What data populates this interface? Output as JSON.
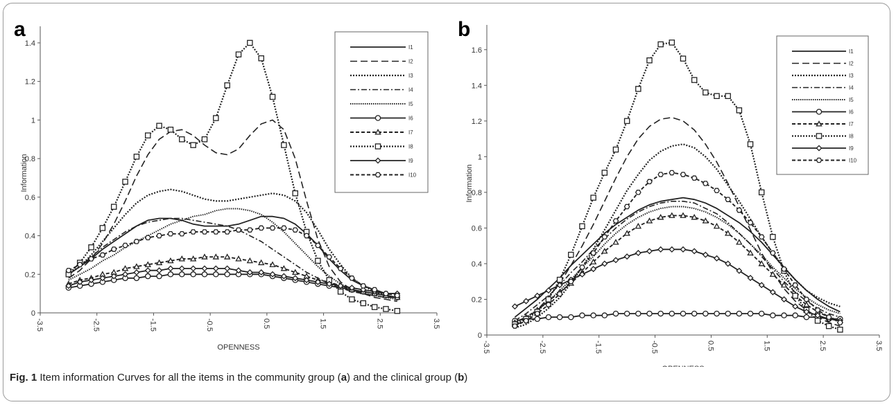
{
  "caption": {
    "fig_label": "Fig. 1",
    "t1": " Item information Curves for all the items in the community group (",
    "a": "a",
    "t2": ") and the clinical group (",
    "b": "b",
    "t3": ")"
  },
  "chart_data": [
    {
      "type": "line",
      "panel_label": "a",
      "xlabel": "OPENNESS",
      "ylabel": "Information",
      "xlim": [
        -3.5,
        3.5
      ],
      "ylim": [
        0,
        1.45
      ],
      "xticks": [
        -3.5,
        -2.5,
        -1.5,
        -0.5,
        0.5,
        1.5,
        2.5,
        3.5
      ],
      "xtick_labels": [
        "-3.5",
        "-2.5",
        "-1.5",
        "-0.5",
        "0.5",
        "1.5",
        "2.5",
        "3.5"
      ],
      "yticks": [
        0,
        0.2,
        0.4,
        0.6,
        0.8,
        1,
        1.2,
        1.4
      ],
      "ytick_labels": [
        "0",
        "0.2",
        "0.4",
        "0.6",
        "0.8",
        "1",
        "1.2",
        "1.4"
      ],
      "grid": false,
      "legend_position": "top-right",
      "x": [
        -3.0,
        -2.8,
        -2.6,
        -2.4,
        -2.2,
        -2.0,
        -1.8,
        -1.6,
        -1.4,
        -1.2,
        -1.0,
        -0.8,
        -0.6,
        -0.4,
        -0.2,
        0.0,
        0.2,
        0.4,
        0.6,
        0.8,
        1.0,
        1.2,
        1.4,
        1.6,
        1.8,
        2.0,
        2.2,
        2.4,
        2.6,
        2.8
      ],
      "series": [
        {
          "name": "I1",
          "style": "solid",
          "marker": "none",
          "values": [
            0.2,
            0.24,
            0.28,
            0.33,
            0.37,
            0.41,
            0.45,
            0.48,
            0.49,
            0.49,
            0.48,
            0.46,
            0.45,
            0.45,
            0.45,
            0.46,
            0.48,
            0.5,
            0.5,
            0.49,
            0.46,
            0.41,
            0.35,
            0.28,
            0.22,
            0.17,
            0.14,
            0.12,
            0.1,
            0.1
          ]
        },
        {
          "name": "I2",
          "style": "long-dash",
          "marker": "none",
          "values": [
            0.18,
            0.22,
            0.28,
            0.36,
            0.46,
            0.58,
            0.71,
            0.82,
            0.9,
            0.94,
            0.95,
            0.92,
            0.87,
            0.83,
            0.82,
            0.85,
            0.92,
            0.98,
            1.0,
            0.95,
            0.8,
            0.58,
            0.38,
            0.24,
            0.16,
            0.12,
            0.1,
            0.08,
            0.07,
            0.06
          ]
        },
        {
          "name": "I3",
          "style": "dotted",
          "marker": "none",
          "values": [
            0.2,
            0.24,
            0.3,
            0.37,
            0.44,
            0.51,
            0.57,
            0.61,
            0.63,
            0.64,
            0.63,
            0.61,
            0.59,
            0.58,
            0.58,
            0.59,
            0.6,
            0.61,
            0.62,
            0.61,
            0.58,
            0.52,
            0.43,
            0.33,
            0.25,
            0.18,
            0.14,
            0.11,
            0.09,
            0.08
          ]
        },
        {
          "name": "I4",
          "style": "dash-dot",
          "marker": "none",
          "values": [
            0.2,
            0.24,
            0.29,
            0.34,
            0.38,
            0.42,
            0.45,
            0.47,
            0.48,
            0.49,
            0.49,
            0.48,
            0.47,
            0.46,
            0.45,
            0.43,
            0.4,
            0.37,
            0.33,
            0.29,
            0.25,
            0.21,
            0.18,
            0.15,
            0.13,
            0.11,
            0.1,
            0.09,
            0.08,
            0.08
          ]
        },
        {
          "name": "I5",
          "style": "fine-dot",
          "marker": "none",
          "values": [
            0.17,
            0.2,
            0.23,
            0.27,
            0.3,
            0.34,
            0.37,
            0.4,
            0.43,
            0.46,
            0.48,
            0.5,
            0.51,
            0.53,
            0.54,
            0.54,
            0.53,
            0.51,
            0.47,
            0.42,
            0.36,
            0.3,
            0.24,
            0.19,
            0.15,
            0.12,
            0.1,
            0.09,
            0.08,
            0.07
          ]
        },
        {
          "name": "I6",
          "style": "solid",
          "marker": "circle",
          "values": [
            0.13,
            0.14,
            0.15,
            0.16,
            0.17,
            0.18,
            0.18,
            0.19,
            0.19,
            0.2,
            0.2,
            0.2,
            0.2,
            0.2,
            0.2,
            0.2,
            0.2,
            0.2,
            0.19,
            0.18,
            0.17,
            0.16,
            0.15,
            0.14,
            0.13,
            0.12,
            0.11,
            0.1,
            0.09,
            0.08
          ]
        },
        {
          "name": "I7",
          "style": "dash",
          "marker": "triangle",
          "values": [
            0.15,
            0.17,
            0.18,
            0.2,
            0.21,
            0.23,
            0.24,
            0.25,
            0.26,
            0.27,
            0.28,
            0.28,
            0.29,
            0.29,
            0.29,
            0.28,
            0.27,
            0.26,
            0.25,
            0.23,
            0.21,
            0.19,
            0.17,
            0.16,
            0.14,
            0.12,
            0.11,
            0.1,
            0.09,
            0.08
          ]
        },
        {
          "name": "I8",
          "style": "dotted",
          "marker": "square",
          "values": [
            0.2,
            0.26,
            0.34,
            0.44,
            0.55,
            0.68,
            0.81,
            0.92,
            0.97,
            0.95,
            0.9,
            0.87,
            0.9,
            1.01,
            1.18,
            1.34,
            1.4,
            1.32,
            1.12,
            0.87,
            0.62,
            0.42,
            0.27,
            0.17,
            0.11,
            0.07,
            0.05,
            0.03,
            0.02,
            0.01
          ]
        },
        {
          "name": "I9",
          "style": "solid",
          "marker": "diamond",
          "values": [
            0.14,
            0.16,
            0.17,
            0.18,
            0.19,
            0.2,
            0.21,
            0.22,
            0.22,
            0.23,
            0.23,
            0.23,
            0.23,
            0.23,
            0.23,
            0.22,
            0.21,
            0.21,
            0.2,
            0.19,
            0.18,
            0.17,
            0.16,
            0.15,
            0.14,
            0.13,
            0.12,
            0.11,
            0.1,
            0.1
          ]
        },
        {
          "name": "I10",
          "style": "dash",
          "marker": "hexagon",
          "values": [
            0.22,
            0.25,
            0.28,
            0.3,
            0.33,
            0.35,
            0.37,
            0.39,
            0.4,
            0.41,
            0.41,
            0.42,
            0.42,
            0.42,
            0.42,
            0.43,
            0.43,
            0.44,
            0.44,
            0.44,
            0.43,
            0.4,
            0.35,
            0.29,
            0.23,
            0.18,
            0.14,
            0.12,
            0.1,
            0.09
          ]
        }
      ]
    },
    {
      "type": "line",
      "panel_label": "b",
      "xlabel": "OPENNESS",
      "ylabel": "Information",
      "xlim": [
        -3.5,
        3.5
      ],
      "ylim": [
        0,
        1.7
      ],
      "xticks": [
        -3.5,
        -2.5,
        -1.5,
        -0.5,
        0.5,
        1.5,
        2.5,
        3.5
      ],
      "xtick_labels": [
        "-3.5",
        "-2.5",
        "-1.5",
        "-0.5",
        "0.5",
        "1.5",
        "2.5",
        "3.5"
      ],
      "yticks": [
        0,
        0.2,
        0.4,
        0.6,
        0.8,
        1,
        1.2,
        1.4,
        1.6
      ],
      "ytick_labels": [
        "0",
        "0.2",
        "0.4",
        "0.6",
        "0.8",
        "1",
        "1.2",
        "1.4",
        "1.6"
      ],
      "grid": false,
      "legend_position": "top-right",
      "x": [
        -3.0,
        -2.8,
        -2.6,
        -2.4,
        -2.2,
        -2.0,
        -1.8,
        -1.6,
        -1.4,
        -1.2,
        -1.0,
        -0.8,
        -0.6,
        -0.4,
        -0.2,
        0.0,
        0.2,
        0.4,
        0.6,
        0.8,
        1.0,
        1.2,
        1.4,
        1.6,
        1.8,
        2.0,
        2.2,
        2.4,
        2.6,
        2.8
      ],
      "series": [
        {
          "name": "I1",
          "style": "solid",
          "marker": "none",
          "values": [
            0.1,
            0.15,
            0.2,
            0.26,
            0.32,
            0.39,
            0.45,
            0.51,
            0.57,
            0.62,
            0.66,
            0.7,
            0.73,
            0.75,
            0.76,
            0.77,
            0.76,
            0.74,
            0.71,
            0.67,
            0.63,
            0.58,
            0.52,
            0.45,
            0.38,
            0.31,
            0.25,
            0.2,
            0.16,
            0.13
          ]
        },
        {
          "name": "I2",
          "style": "long-dash",
          "marker": "none",
          "values": [
            0.05,
            0.09,
            0.14,
            0.21,
            0.29,
            0.39,
            0.5,
            0.62,
            0.75,
            0.88,
            1.0,
            1.1,
            1.17,
            1.21,
            1.22,
            1.2,
            1.15,
            1.07,
            0.97,
            0.85,
            0.72,
            0.59,
            0.46,
            0.35,
            0.26,
            0.19,
            0.14,
            0.1,
            0.07,
            0.05
          ]
        },
        {
          "name": "I3",
          "style": "dotted",
          "marker": "none",
          "values": [
            0.04,
            0.06,
            0.1,
            0.15,
            0.21,
            0.29,
            0.38,
            0.48,
            0.59,
            0.7,
            0.81,
            0.9,
            0.98,
            1.03,
            1.06,
            1.07,
            1.05,
            1.0,
            0.93,
            0.84,
            0.75,
            0.65,
            0.55,
            0.46,
            0.38,
            0.31,
            0.25,
            0.21,
            0.18,
            0.16
          ]
        },
        {
          "name": "I4",
          "style": "dash-dot",
          "marker": "none",
          "values": [
            0.08,
            0.12,
            0.17,
            0.22,
            0.28,
            0.35,
            0.41,
            0.48,
            0.54,
            0.6,
            0.65,
            0.69,
            0.72,
            0.74,
            0.75,
            0.75,
            0.74,
            0.71,
            0.68,
            0.63,
            0.57,
            0.51,
            0.44,
            0.37,
            0.3,
            0.24,
            0.19,
            0.15,
            0.12,
            0.1
          ]
        },
        {
          "name": "I5",
          "style": "fine-dot",
          "marker": "none",
          "values": [
            0.07,
            0.1,
            0.14,
            0.19,
            0.25,
            0.31,
            0.38,
            0.44,
            0.51,
            0.57,
            0.62,
            0.66,
            0.69,
            0.71,
            0.72,
            0.72,
            0.71,
            0.69,
            0.66,
            0.62,
            0.57,
            0.51,
            0.45,
            0.38,
            0.32,
            0.26,
            0.21,
            0.17,
            0.14,
            0.12
          ]
        },
        {
          "name": "I6",
          "style": "solid",
          "marker": "circle",
          "values": [
            0.08,
            0.09,
            0.09,
            0.1,
            0.1,
            0.1,
            0.11,
            0.11,
            0.11,
            0.12,
            0.12,
            0.12,
            0.12,
            0.12,
            0.12,
            0.12,
            0.12,
            0.12,
            0.12,
            0.12,
            0.12,
            0.12,
            0.12,
            0.11,
            0.11,
            0.11,
            0.1,
            0.1,
            0.09,
            0.09
          ]
        },
        {
          "name": "I7",
          "style": "dash",
          "marker": "triangle",
          "values": [
            0.07,
            0.1,
            0.14,
            0.19,
            0.24,
            0.29,
            0.35,
            0.41,
            0.47,
            0.52,
            0.57,
            0.61,
            0.64,
            0.66,
            0.67,
            0.67,
            0.66,
            0.64,
            0.61,
            0.57,
            0.52,
            0.46,
            0.4,
            0.34,
            0.28,
            0.22,
            0.17,
            0.13,
            0.1,
            0.08
          ]
        },
        {
          "name": "I8",
          "style": "dotted",
          "marker": "square",
          "values": [
            0.06,
            0.09,
            0.13,
            0.2,
            0.31,
            0.45,
            0.61,
            0.77,
            0.91,
            1.04,
            1.2,
            1.38,
            1.54,
            1.63,
            1.64,
            1.55,
            1.43,
            1.36,
            1.34,
            1.34,
            1.26,
            1.07,
            0.8,
            0.55,
            0.36,
            0.22,
            0.14,
            0.08,
            0.05,
            0.03
          ]
        },
        {
          "name": "I9",
          "style": "solid",
          "marker": "diamond",
          "values": [
            0.16,
            0.19,
            0.22,
            0.25,
            0.28,
            0.31,
            0.34,
            0.37,
            0.4,
            0.42,
            0.44,
            0.46,
            0.47,
            0.48,
            0.48,
            0.48,
            0.47,
            0.45,
            0.43,
            0.4,
            0.36,
            0.32,
            0.28,
            0.24,
            0.2,
            0.16,
            0.13,
            0.11,
            0.09,
            0.08
          ]
        },
        {
          "name": "I10",
          "style": "dash",
          "marker": "hexagon",
          "values": [
            0.05,
            0.08,
            0.12,
            0.17,
            0.23,
            0.3,
            0.38,
            0.46,
            0.55,
            0.64,
            0.72,
            0.8,
            0.86,
            0.9,
            0.91,
            0.9,
            0.88,
            0.85,
            0.81,
            0.76,
            0.7,
            0.63,
            0.55,
            0.46,
            0.37,
            0.28,
            0.2,
            0.14,
            0.1,
            0.07
          ]
        }
      ]
    }
  ]
}
